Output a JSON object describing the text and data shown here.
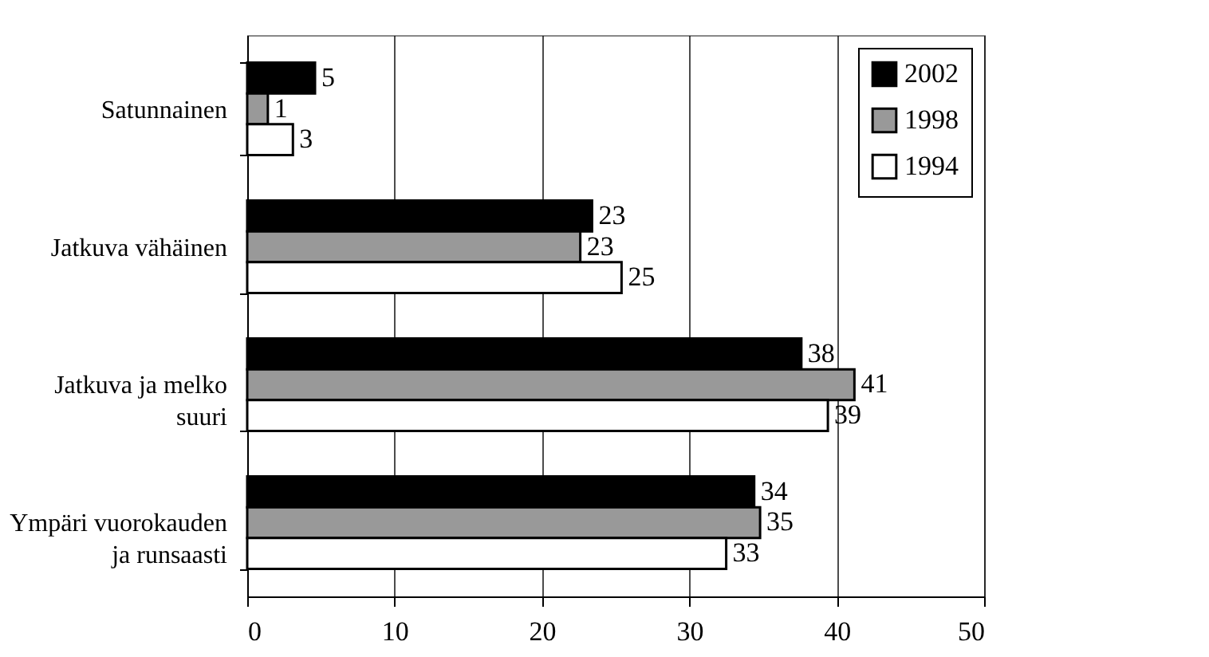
{
  "chart_data": {
    "type": "bar",
    "orientation": "horizontal",
    "categories": [
      "Satunnainen",
      "Jatkuva vähäinen",
      "Jatkuva ja melko suuri",
      "Ympäri vuorokauden ja runsaasti"
    ],
    "series": [
      {
        "name": "2002",
        "color": "#000000",
        "values": [
          4.6,
          23.4,
          37.6,
          34.4
        ],
        "value_labels": [
          "5",
          "23",
          "38",
          "34"
        ]
      },
      {
        "name": "1998",
        "color": "#999999",
        "values": [
          1.4,
          22.6,
          41.2,
          34.8
        ],
        "value_labels": [
          "1",
          "23",
          "41",
          "35"
        ]
      },
      {
        "name": "1994",
        "color": "#ffffff",
        "values": [
          3.1,
          25.4,
          39.4,
          32.5
        ],
        "value_labels": [
          "3",
          "25",
          "39",
          "33"
        ]
      }
    ],
    "xlim": [
      0,
      50
    ],
    "xticks": [
      0,
      10,
      20,
      30,
      40,
      50
    ],
    "grid": "x",
    "legend": "top right"
  }
}
